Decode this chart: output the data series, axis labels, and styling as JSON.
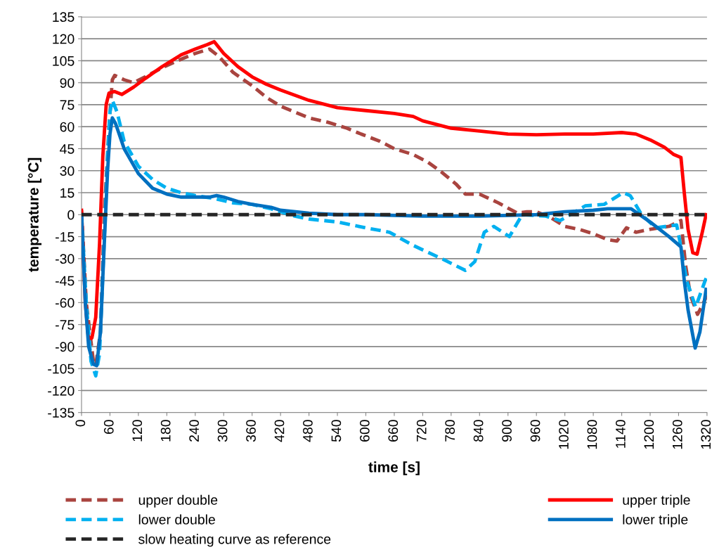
{
  "chart_data": {
    "type": "line",
    "xlabel": "time [s]",
    "ylabel": "temperature [°C]",
    "xlim": [
      0,
      1320
    ],
    "xticks": [
      0,
      60,
      120,
      180,
      240,
      300,
      360,
      420,
      480,
      540,
      600,
      660,
      720,
      780,
      840,
      900,
      960,
      1020,
      1080,
      1140,
      1200,
      1260,
      1320
    ],
    "ylim": [
      -135,
      135
    ],
    "yticks": [
      -135,
      -120,
      -105,
      -90,
      -75,
      -60,
      -45,
      -30,
      -15,
      0,
      15,
      30,
      45,
      60,
      75,
      90,
      105,
      120,
      135
    ],
    "grid": "y",
    "legend": "bottom",
    "marker": "none",
    "series": [
      {
        "name": "upper double",
        "color": "#a9443f",
        "line_style": "dashed",
        "x": [
          0,
          10,
          25,
          30,
          40,
          48,
          58,
          65,
          70,
          90,
          110,
          140,
          175,
          210,
          240,
          270,
          290,
          320,
          360,
          390,
          420,
          450,
          480,
          520,
          560,
          590,
          630,
          660,
          700,
          730,
          760,
          790,
          810,
          840,
          880,
          920,
          940,
          960,
          990,
          1020,
          1050,
          1080,
          1110,
          1130,
          1150,
          1170,
          1200,
          1240,
          1265,
          1275,
          1285,
          1300,
          1310,
          1320
        ],
        "values": [
          3,
          -60,
          -100,
          -103,
          -80,
          0,
          60,
          92,
          95,
          92,
          90,
          95,
          101,
          106,
          110,
          113,
          108,
          97,
          88,
          80,
          74,
          70,
          66,
          63,
          59,
          55,
          50,
          45,
          41,
          36,
          29,
          21,
          14,
          14,
          8,
          1,
          2,
          2,
          -2,
          -8,
          -10,
          -13,
          -17,
          -18,
          -9,
          -12,
          -10,
          -8,
          -4,
          -35,
          -55,
          -68,
          -62,
          -55
        ]
      },
      {
        "name": "upper triple",
        "color": "#ff0000",
        "line_style": "solid",
        "x": [
          0,
          8,
          15,
          22,
          30,
          38,
          45,
          52,
          58,
          70,
          85,
          110,
          135,
          170,
          210,
          240,
          265,
          280,
          300,
          330,
          360,
          390,
          420,
          480,
          540,
          600,
          660,
          700,
          720,
          780,
          840,
          900,
          960,
          1020,
          1080,
          1140,
          1170,
          1200,
          1230,
          1250,
          1265,
          1272,
          1280,
          1290,
          1299,
          1310,
          1318
        ],
        "values": [
          3,
          -60,
          -86,
          -84,
          -70,
          -20,
          40,
          75,
          83,
          84,
          82,
          87,
          93,
          101,
          109,
          113,
          116,
          118,
          110,
          101,
          94,
          89,
          85,
          78,
          73,
          71,
          69,
          67,
          64,
          59,
          57,
          55,
          54.5,
          55,
          55,
          56,
          55,
          51,
          46,
          41,
          39,
          15,
          -10,
          -26,
          -27,
          -12,
          0
        ]
      },
      {
        "name": "lower double",
        "color": "#00b0f0",
        "line_style": "dashed",
        "x": [
          0,
          10,
          20,
          30,
          38,
          45,
          50,
          55,
          60,
          65,
          75,
          90,
          120,
          150,
          180,
          210,
          240,
          280,
          320,
          360,
          400,
          420,
          450,
          480,
          540,
          600,
          650,
          700,
          760,
          810,
          830,
          850,
          870,
          903,
          930,
          980,
          1010,
          1063,
          1103,
          1143,
          1158,
          1182,
          1212,
          1256,
          1262,
          1277,
          1296,
          1316,
          1320
        ],
        "values": [
          0,
          -60,
          -100,
          -110,
          -95,
          -40,
          0,
          40,
          70,
          78,
          70,
          50,
          33,
          24,
          18,
          15,
          13,
          11,
          8,
          7,
          4,
          2,
          -1,
          -3,
          -5,
          -9,
          -12,
          -21,
          -30,
          -38,
          -32,
          -12,
          -8,
          -15,
          0,
          -1,
          -4,
          6,
          7,
          15,
          13,
          0,
          -9,
          -7,
          -17,
          -45,
          -63,
          -45,
          -42
        ]
      },
      {
        "name": "lower triple",
        "color": "#0070c0",
        "line_style": "solid",
        "x": [
          0,
          8,
          15,
          25,
          32,
          40,
          48,
          55,
          60,
          65,
          72,
          90,
          120,
          150,
          180,
          210,
          240,
          270,
          285,
          300,
          330,
          360,
          400,
          420,
          480,
          540,
          600,
          720,
          840,
          960,
          1020,
          1080,
          1110,
          1160,
          1200,
          1240,
          1265,
          1272,
          1280,
          1295,
          1305,
          1318
        ],
        "values": [
          0,
          -60,
          -90,
          -102,
          -103,
          -80,
          -20,
          30,
          55,
          66,
          62,
          45,
          28,
          18,
          14,
          12,
          12,
          12,
          13,
          12,
          9,
          7,
          5,
          3,
          1,
          0,
          0,
          -1,
          -1,
          0,
          2,
          3,
          4,
          4,
          -5,
          -15,
          -22,
          -45,
          -65,
          -91,
          -80,
          -51
        ]
      },
      {
        "name": "slow heating curve as reference",
        "color": "#262626",
        "line_style": "dashed",
        "x": [
          0,
          1320
        ],
        "values": [
          0,
          0
        ]
      }
    ]
  }
}
